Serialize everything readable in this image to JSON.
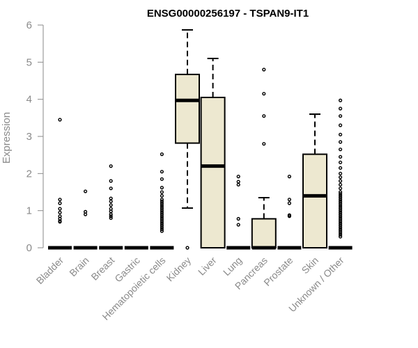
{
  "chart_data": {
    "type": "boxplot",
    "title": "ENSG00000256197 - TSPAN9-IT1",
    "xlabel": "",
    "ylabel": "Expression",
    "ylim": [
      0,
      6
    ],
    "yticks": [
      0,
      1,
      2,
      3,
      4,
      5,
      6
    ],
    "grid": false,
    "box_color": "#ede8d0",
    "categories": [
      "Bladder",
      "Brain",
      "Breast",
      "Gastric",
      "Hematopoietic cells",
      "Kidney",
      "Liver",
      "Lung",
      "Pancreas",
      "Prostate",
      "Skin",
      "Unknown / Other"
    ],
    "boxes": [
      {
        "name": "Bladder",
        "min": 0,
        "q1": 0,
        "median": 0,
        "q3": 0,
        "max": 0,
        "outliers": [
          3.45,
          1.3,
          1.2,
          1.05,
          0.95,
          0.85,
          0.78,
          0.72,
          0.7
        ]
      },
      {
        "name": "Brain",
        "min": 0,
        "q1": 0,
        "median": 0,
        "q3": 0,
        "max": 0,
        "outliers": [
          1.52,
          0.97,
          0.9
        ]
      },
      {
        "name": "Breast",
        "min": 0,
        "q1": 0,
        "median": 0,
        "q3": 0,
        "max": 0,
        "outliers": [
          2.2,
          1.8,
          1.6,
          1.33,
          1.25,
          1.15,
          1.05,
          0.98,
          0.9,
          0.85,
          0.8
        ]
      },
      {
        "name": "Gastric",
        "min": 0,
        "q1": 0,
        "median": 0,
        "q3": 0,
        "max": 0,
        "outliers": []
      },
      {
        "name": "Hematopoietic cells",
        "min": 0,
        "q1": 0,
        "median": 0,
        "q3": 0,
        "max": 0,
        "outliers": [
          2.52,
          2.05,
          1.85,
          1.62,
          1.5,
          1.4,
          1.3,
          1.25,
          1.2,
          1.15,
          1.1,
          1.05,
          1.0,
          0.95,
          0.9,
          0.85,
          0.8,
          0.75,
          0.7,
          0.65,
          0.6,
          0.55,
          0.5,
          0.45
        ]
      },
      {
        "name": "Kidney",
        "min": 1.07,
        "q1": 2.82,
        "median": 3.97,
        "q3": 4.67,
        "max": 5.87,
        "outliers": [
          0
        ]
      },
      {
        "name": "Liver",
        "min": 0,
        "q1": 0,
        "median": 2.2,
        "q3": 4.05,
        "max": 5.1,
        "outliers": []
      },
      {
        "name": "Lung",
        "min": 0,
        "q1": 0,
        "median": 0,
        "q3": 0,
        "max": 0,
        "outliers": [
          1.92,
          1.78,
          1.7,
          0.78,
          0.62
        ]
      },
      {
        "name": "Pancreas",
        "min": 0,
        "q1": 0,
        "median": 0,
        "q3": 0.78,
        "max": 1.35,
        "outliers": [
          4.8,
          4.15,
          3.55,
          2.8
        ]
      },
      {
        "name": "Prostate",
        "min": 0,
        "q1": 0,
        "median": 0,
        "q3": 0,
        "max": 0,
        "outliers": [
          1.92,
          1.3,
          1.2,
          0.88,
          0.85
        ]
      },
      {
        "name": "Skin",
        "min": 0,
        "q1": 0,
        "median": 1.4,
        "q3": 2.52,
        "max": 3.6,
        "outliers": []
      },
      {
        "name": "Unknown / Other",
        "min": 0,
        "q1": 0,
        "median": 0,
        "q3": 0,
        "max": 0,
        "outliers": [
          3.97,
          3.75,
          3.55,
          3.3,
          3.05,
          2.85,
          2.65,
          2.45,
          2.3,
          2.15,
          2.0,
          1.9,
          1.8,
          1.7,
          1.6,
          1.5,
          1.45,
          1.4,
          1.35,
          1.3,
          1.25,
          1.2,
          1.15,
          1.1,
          1.05,
          1.0,
          0.95,
          0.9,
          0.85,
          0.8,
          0.75,
          0.7,
          0.65,
          0.6,
          0.55,
          0.5,
          0.45,
          0.4,
          0.35,
          0.3
        ]
      }
    ]
  }
}
